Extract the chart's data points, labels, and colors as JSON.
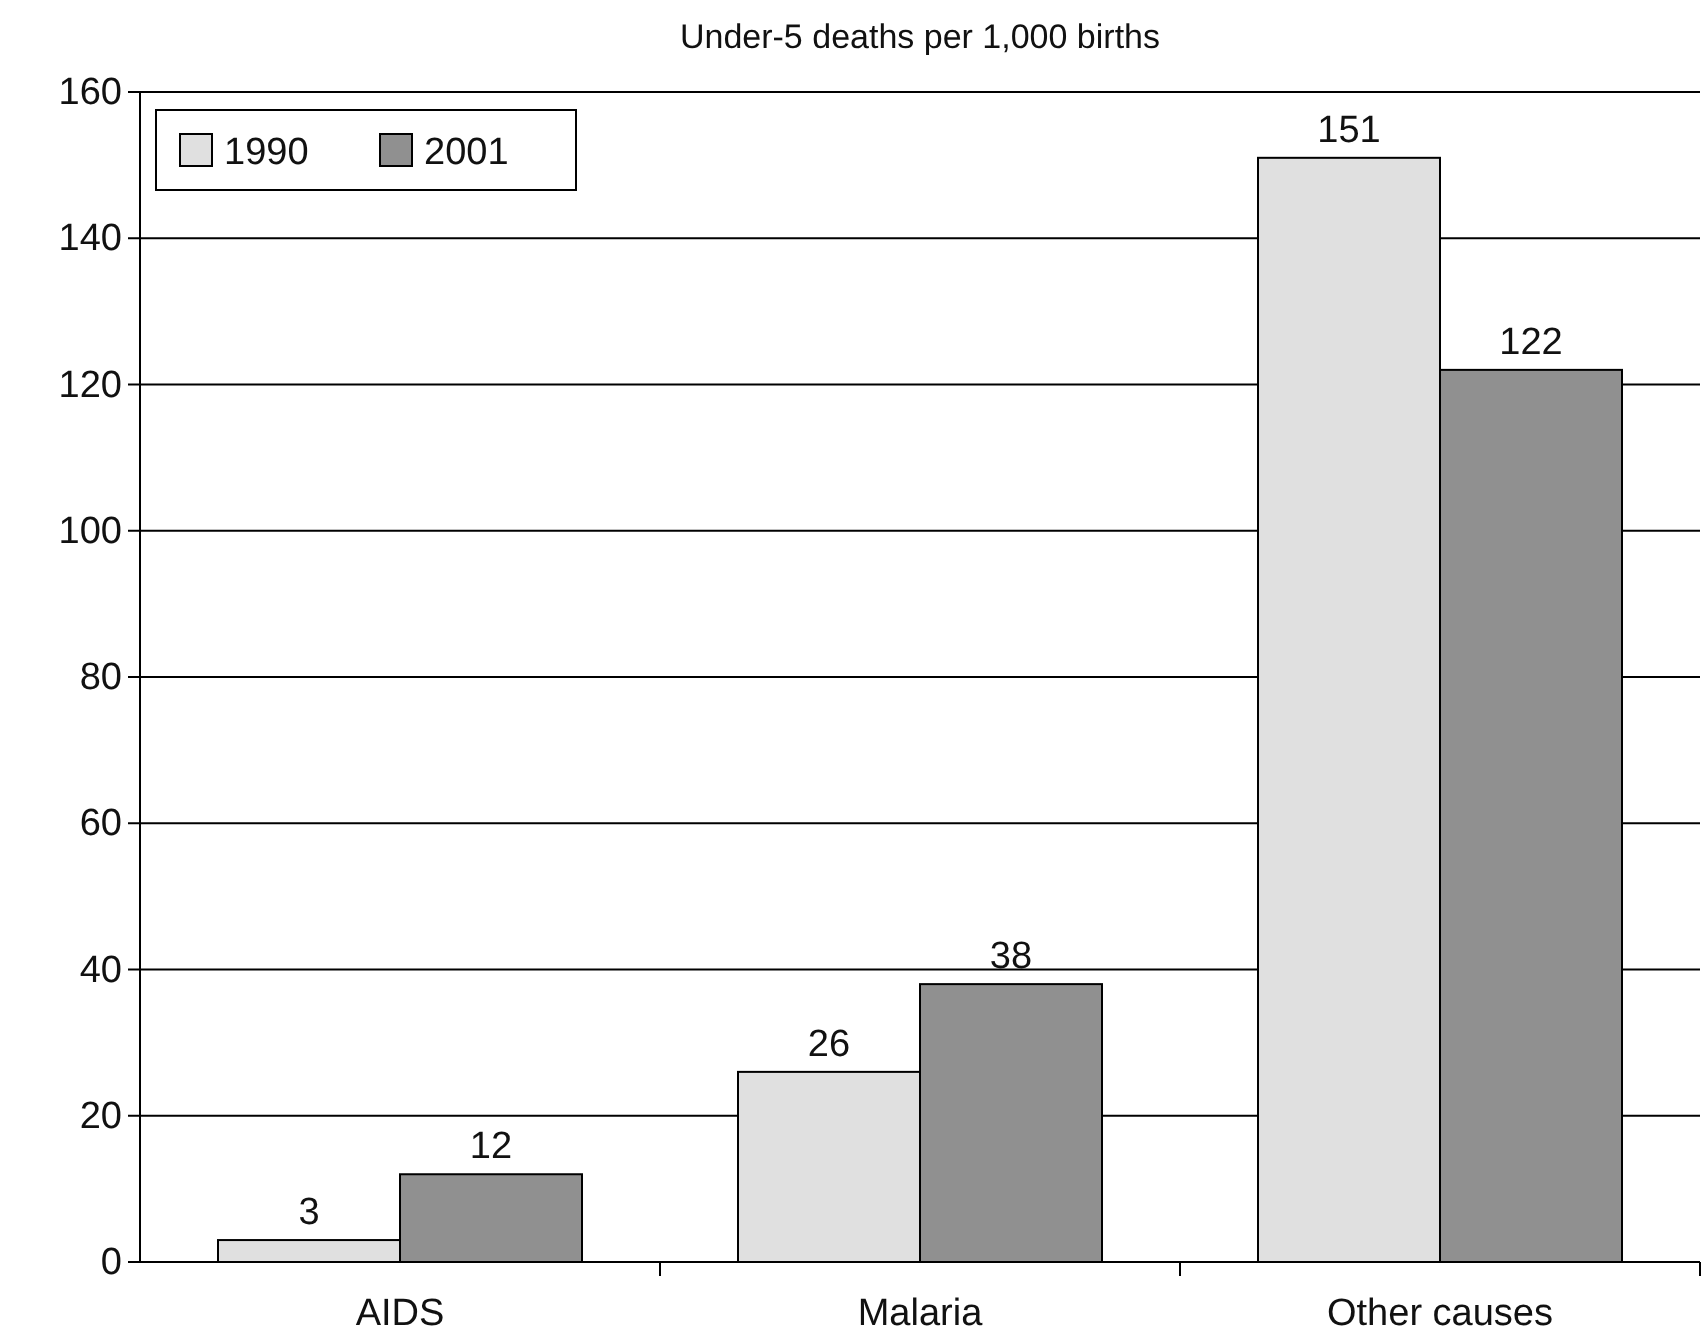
{
  "chart_data": {
    "type": "bar",
    "title": "Under-5 deaths per 1,000 births",
    "categories": [
      "AIDS",
      "Malaria",
      "Other causes"
    ],
    "series": [
      {
        "name": "1990",
        "color": "#e0e0e0",
        "values": [
          3,
          26,
          151
        ]
      },
      {
        "name": "2001",
        "color": "#909090",
        "values": [
          12,
          38,
          122
        ]
      }
    ],
    "ylim": [
      0,
      160
    ],
    "yticks": [
      0,
      20,
      40,
      60,
      80,
      100,
      120,
      140,
      160
    ],
    "grid": "y",
    "legend": "top left",
    "data_labels": true
  }
}
